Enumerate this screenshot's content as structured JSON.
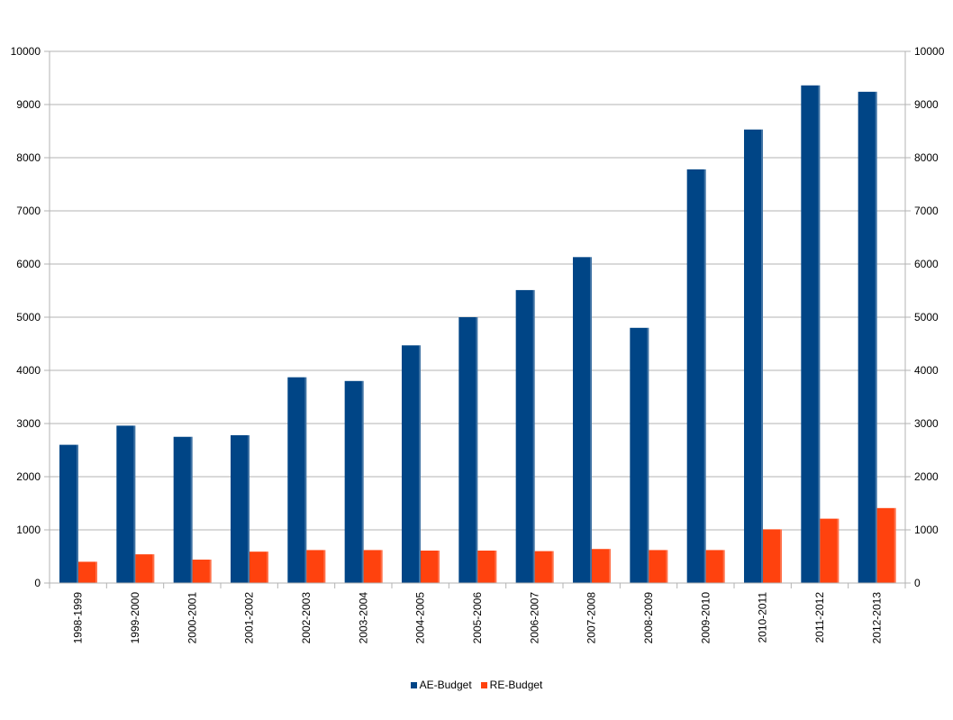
{
  "chart_data": {
    "type": "bar",
    "title": "",
    "xlabel": "",
    "ylabel": "",
    "ylim": [
      0,
      10000
    ],
    "yticks": [
      0,
      1000,
      2000,
      3000,
      4000,
      5000,
      6000,
      7000,
      8000,
      9000,
      10000
    ],
    "secondary_y_axis": true,
    "grid": true,
    "legend_position": "bottom",
    "categories": [
      "1998-1999",
      "1999-2000",
      "2000-2001",
      "2001-2002",
      "2002-2003",
      "2003-2004",
      "2004-2005",
      "2005-2006",
      "2006-2007",
      "2007-2008",
      "2008-2009",
      "2009-2010",
      "2010-2011",
      "2011-2012",
      "2012-2013"
    ],
    "series": [
      {
        "name": "AE-Budget",
        "color": "#004586",
        "values": [
          2600,
          2960,
          2750,
          2780,
          3870,
          3800,
          4470,
          5000,
          5510,
          6130,
          4800,
          7780,
          8530,
          9360,
          9240
        ]
      },
      {
        "name": "RE-Budget",
        "color": "#ff420e",
        "values": [
          400,
          540,
          440,
          590,
          620,
          620,
          610,
          610,
          600,
          640,
          620,
          620,
          1010,
          1210,
          1410
        ]
      }
    ]
  }
}
